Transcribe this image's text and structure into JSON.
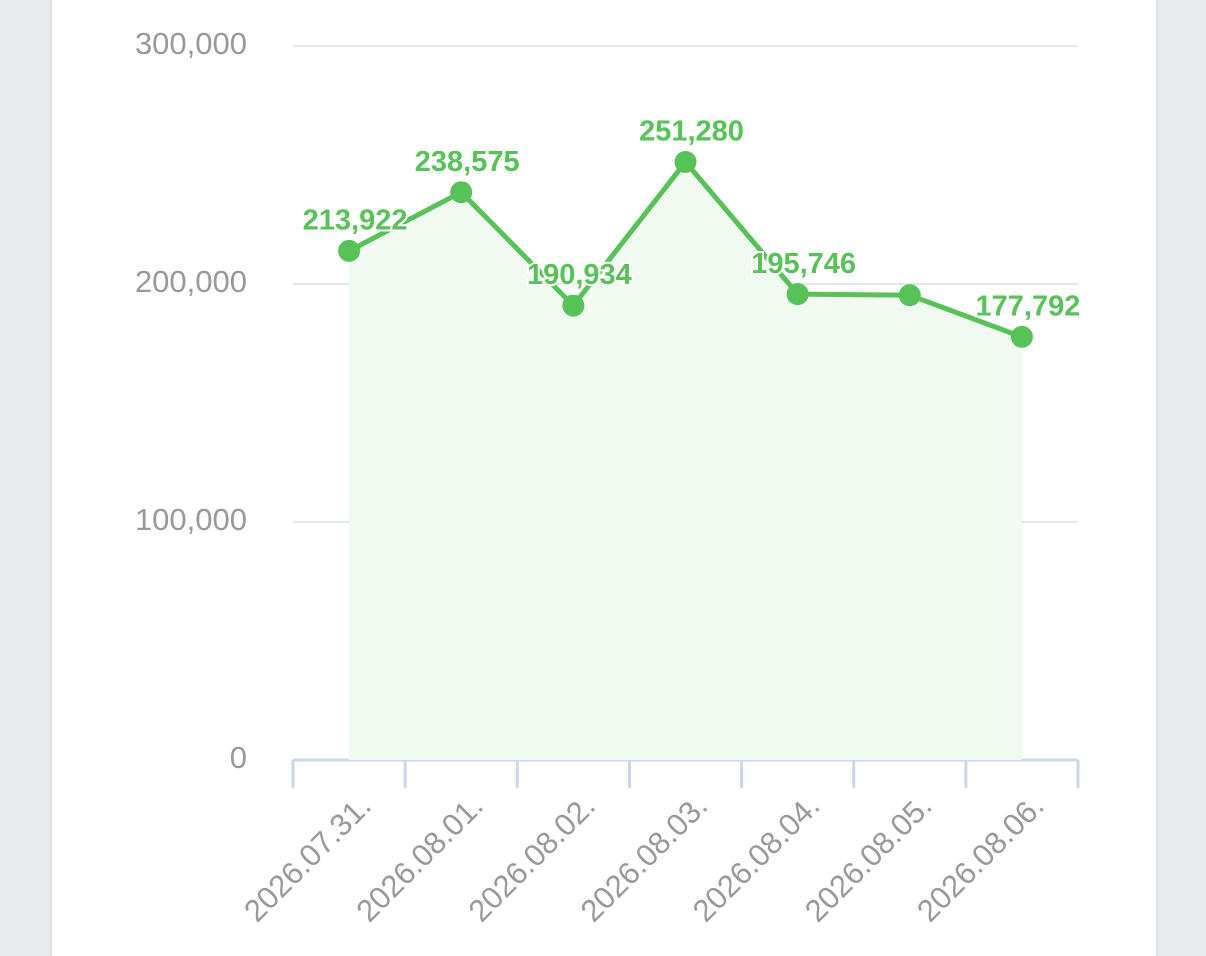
{
  "chart_data": {
    "type": "line",
    "categories": [
      "2026.07.31.",
      "2026.08.01.",
      "2026.08.02.",
      "2026.08.03.",
      "2026.08.04.",
      "2026.08.05.",
      "2026.08.06."
    ],
    "series": [
      {
        "color": "#57c258",
        "values": [
          213922,
          238575,
          190934,
          251280,
          195746,
          195300,
          177792
        ],
        "value_labels": [
          "213,922",
          "238,575",
          "190,934",
          "251,280",
          "195,746",
          null,
          "177,792"
        ]
      }
    ],
    "area": true,
    "area_color": "#f0faf1",
    "ylim": [
      0,
      300000
    ],
    "yticks": [
      0,
      {
        "value": 100000,
        "label": "100,000"
      },
      {
        "value": 200000,
        "label": "200,000"
      },
      {
        "value": 300000,
        "label": "300,000"
      }
    ],
    "grid": true
  }
}
